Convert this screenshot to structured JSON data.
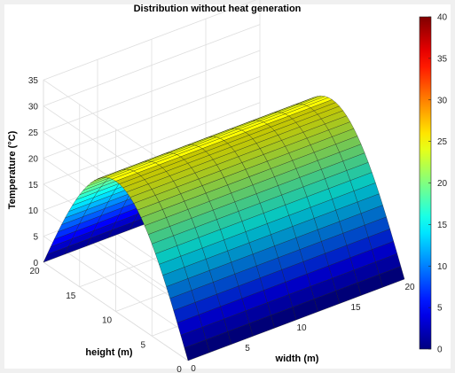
{
  "chart_data": {
    "type": "surface",
    "title": "Distribution without heat generation",
    "zlabel": "Temperature (°C)",
    "xlabel": "width (m)",
    "ylabel": "height (m)",
    "xlim": [
      0,
      20
    ],
    "ylim": [
      0,
      20
    ],
    "zlim": [
      0,
      35
    ],
    "x_ticks": [
      "0",
      "5",
      "10",
      "15",
      "20"
    ],
    "y_ticks": [
      "0",
      "5",
      "10",
      "15",
      "20"
    ],
    "z_ticks": [
      "0",
      "5",
      "10",
      "15",
      "20",
      "25",
      "30",
      "35"
    ],
    "grid": true,
    "surface": {
      "description_of_values": "T(x,y) = 25*sin(pi*y/20); constant along width",
      "max_temperature": 25,
      "edge_temperature": 0
    },
    "colorbar": {
      "limits": [
        0,
        40
      ],
      "ticks": [
        "0",
        "5",
        "10",
        "15",
        "20",
        "25",
        "30",
        "35",
        "40"
      ],
      "colormap": "jet"
    }
  }
}
